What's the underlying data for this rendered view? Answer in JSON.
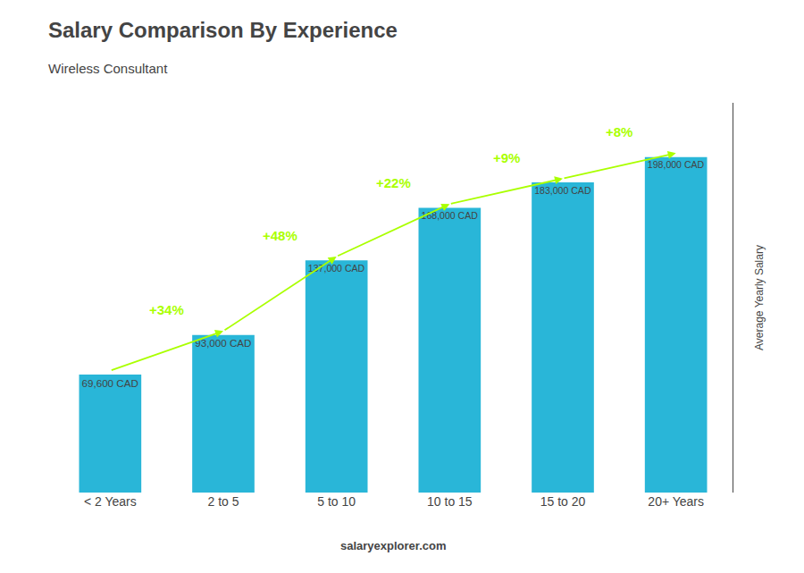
{
  "chart_data": {
    "type": "bar",
    "title": "Salary Comparison By Experience",
    "subtitle": "Wireless Consultant",
    "ylabel": "Average Yearly Salary",
    "footer": "salaryexplorer.com",
    "categories": [
      "< 2 Years",
      "2 to 5",
      "5 to 10",
      "10 to 15",
      "15 to 20",
      "20+ Years"
    ],
    "values": [
      69600,
      93000,
      137000,
      168000,
      183000,
      198000
    ],
    "value_labels": [
      "69,600 CAD",
      "93,000 CAD",
      "137,000 CAD",
      "168,000 CAD",
      "183,000 CAD",
      "198,000 CAD"
    ],
    "data_labels": true,
    "color": "#29b6d8",
    "annotations": [
      {
        "text": "+34%",
        "color": "#aaff00"
      },
      {
        "text": "+48%",
        "color": "#aaff00"
      },
      {
        "text": "+22%",
        "color": "#aaff00"
      },
      {
        "text": "+9%",
        "color": "#aaff00"
      },
      {
        "text": "+8%",
        "color": "#aaff00"
      }
    ],
    "ylim": [
      0,
      230000
    ],
    "yticks": [],
    "tick_labels": "x",
    "grid": false
  }
}
